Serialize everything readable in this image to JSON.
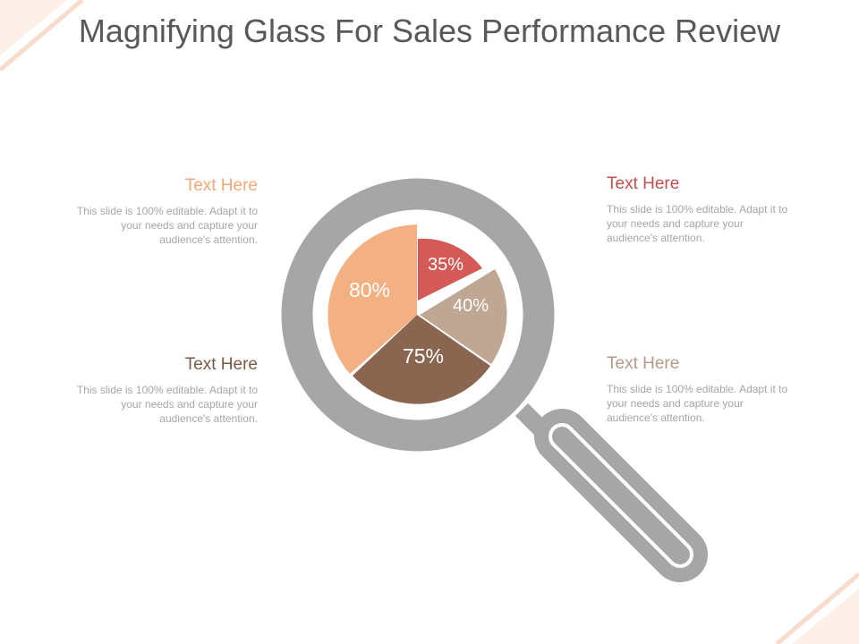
{
  "title": "Magnifying Glass For Sales Performance Review",
  "colors": {
    "lens_ring": "#a6a6a6",
    "handle": "#a6a6a6",
    "peach": "#f2b083",
    "red": "#d35a56",
    "brown": "#8a6650",
    "tan": "#bfa794",
    "corner_accent": "#f8dccb"
  },
  "blocks": [
    {
      "id": "top-left",
      "heading": "Text Here",
      "body": "This slide is 100% editable. Adapt it to your needs and capture your audience's attention."
    },
    {
      "id": "bottom-left",
      "heading": "Text Here",
      "body": "This slide is 100% editable. Adapt it to your needs and capture your audience's attention."
    },
    {
      "id": "top-right",
      "heading": "Text Here",
      "body": "This slide is 100% editable. Adapt it to your needs and capture your audience's attention."
    },
    {
      "id": "bottom-right",
      "heading": "Text Here",
      "body": "This slide is 100% editable. Adapt it to your needs and capture your audience's attention."
    }
  ],
  "pie": {
    "slices": [
      {
        "label": "35%",
        "color": "#d35a56"
      },
      {
        "label": "40%",
        "color": "#bfa794"
      },
      {
        "label": "75%",
        "color": "#8a6650"
      },
      {
        "label": "80%",
        "color": "#f2b083"
      }
    ]
  }
}
